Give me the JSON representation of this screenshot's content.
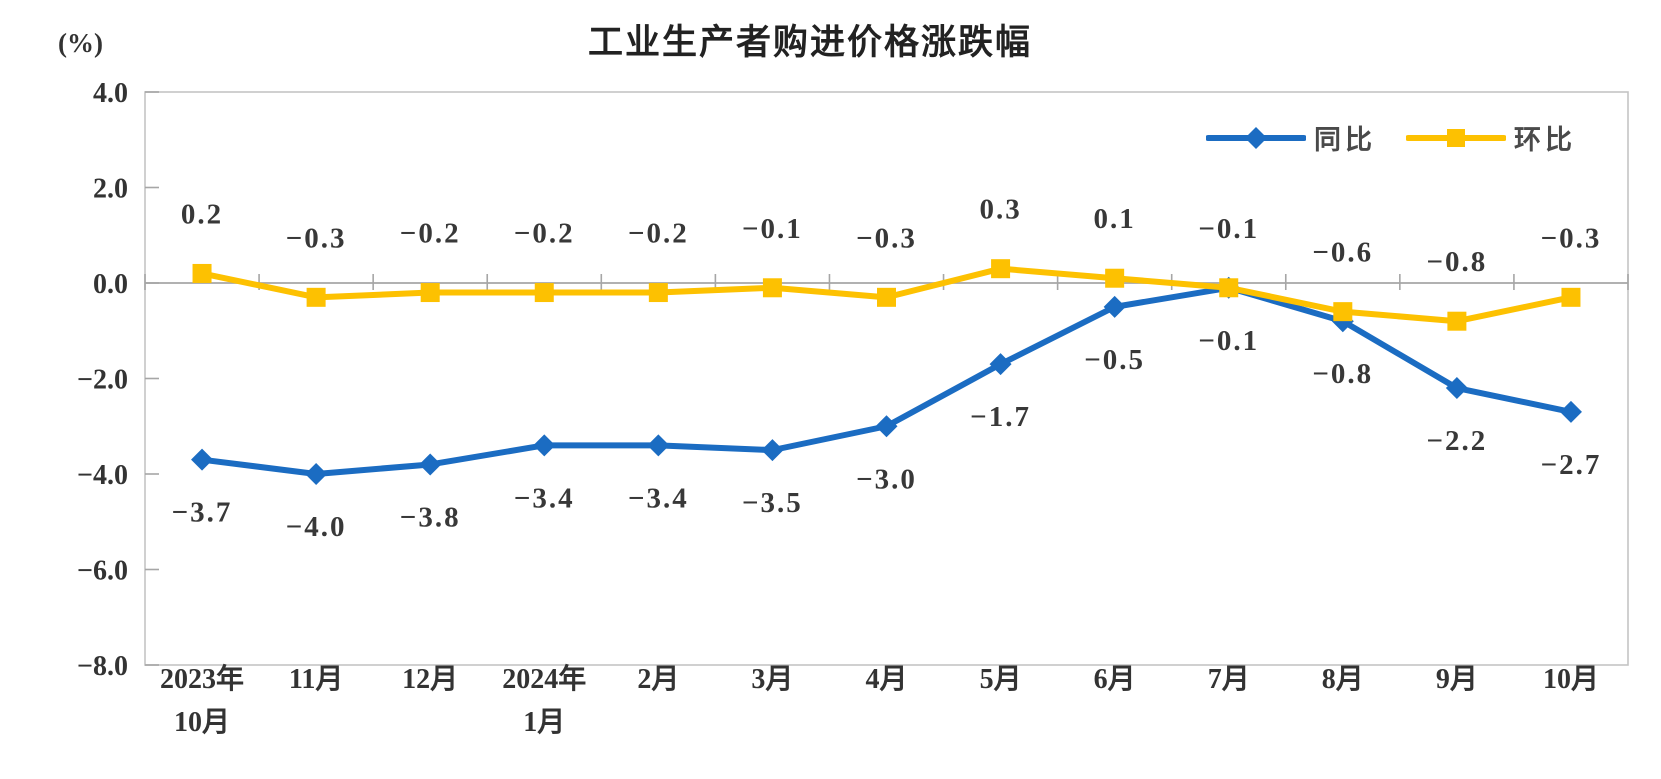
{
  "title": "工业生产者购进价格涨跌幅",
  "unit_label": "(%)",
  "legend": {
    "position": "inside-top-right",
    "items": [
      {
        "label": "同比",
        "marker": "diamond"
      },
      {
        "label": "环比",
        "marker": "square"
      }
    ]
  },
  "colors": {
    "yoy_blue": "#1b6cc2",
    "mom_yellow": "#fdc101",
    "plot_border": "#c4c4c4",
    "zero_axis": "#a6a6a6",
    "tick": "#a6a6a6",
    "label_text": "#383838",
    "axis_text": "#333333"
  },
  "chart_data": {
    "type": "line",
    "title": "工业生产者购进价格涨跌幅",
    "ylabel": "(%)",
    "xlabel": "",
    "grid": false,
    "legend_position": "inside-top-right",
    "ylim": [
      -8.0,
      4.0
    ],
    "ytick_step": 2.0,
    "yticks": [
      "4.0",
      "2.0",
      "0.0",
      "-2.0",
      "-4.0",
      "-6.0",
      "-8.0"
    ],
    "categories": [
      [
        "2023年",
        "10月"
      ],
      [
        "11月"
      ],
      [
        "12月"
      ],
      [
        "2024年",
        "1月"
      ],
      [
        "2月"
      ],
      [
        "3月"
      ],
      [
        "4月"
      ],
      [
        "5月"
      ],
      [
        "6月"
      ],
      [
        "7月"
      ],
      [
        "8月"
      ],
      [
        "9月"
      ],
      [
        "10月"
      ]
    ],
    "series": [
      {
        "name": "同比",
        "marker": "diamond",
        "color": "#1b6cc2",
        "label_position": "below",
        "values": [
          -3.7,
          -4.0,
          -3.8,
          -3.4,
          -3.4,
          -3.5,
          -3.0,
          -1.7,
          -0.5,
          -0.1,
          -0.8,
          -2.2,
          -2.7
        ]
      },
      {
        "name": "环比",
        "marker": "square",
        "color": "#fdc101",
        "label_position": "above",
        "values": [
          0.2,
          -0.3,
          -0.2,
          -0.2,
          -0.2,
          -0.1,
          -0.3,
          0.3,
          0.1,
          -0.1,
          -0.6,
          -0.8,
          -0.3
        ]
      }
    ]
  }
}
